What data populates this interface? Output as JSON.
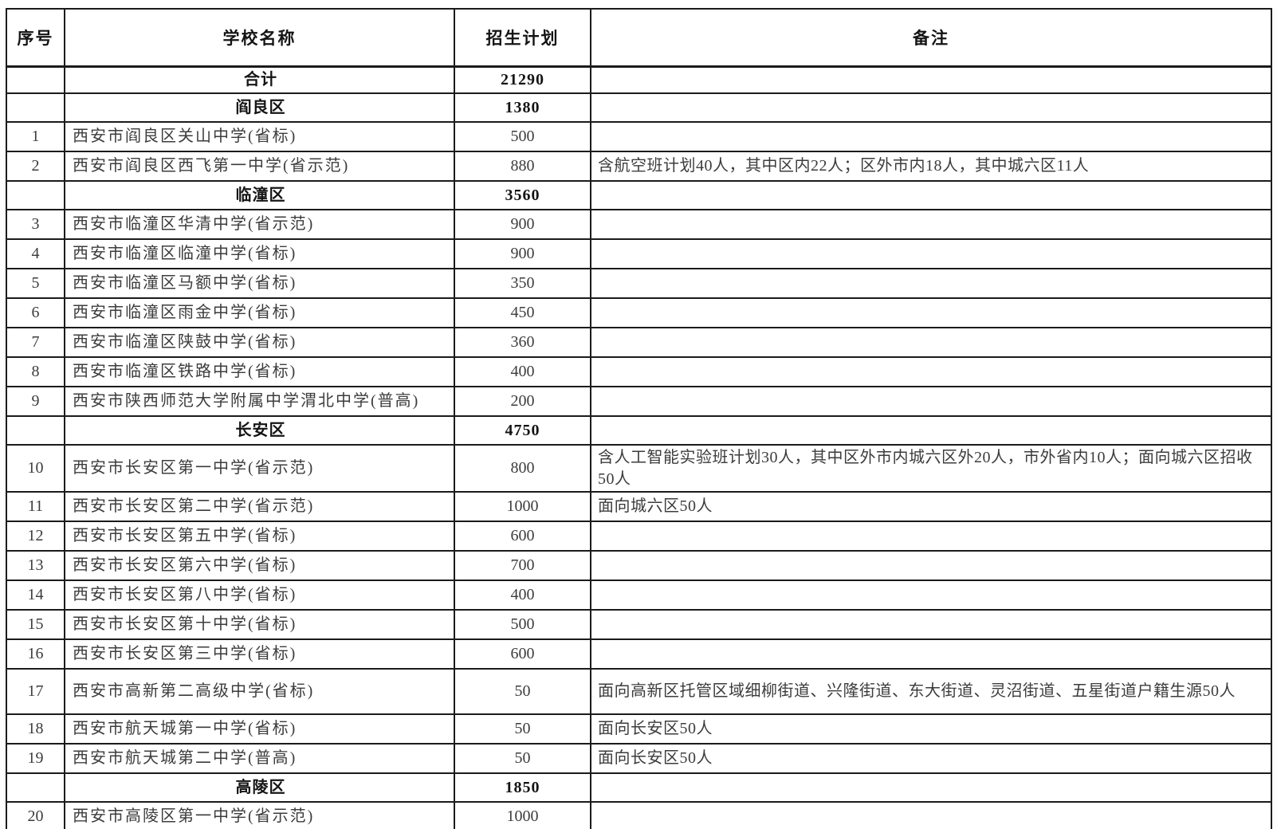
{
  "table": {
    "header": {
      "no": "序号",
      "name": "学校名称",
      "plan": "招生计划",
      "remark": "备注"
    },
    "rows": [
      {
        "kind": "summary",
        "no": "",
        "name": "合计",
        "plan": "21290",
        "remark": ""
      },
      {
        "kind": "district",
        "no": "",
        "name": "阎良区",
        "plan": "1380",
        "remark": ""
      },
      {
        "kind": "school",
        "no": "1",
        "name": "西安市阎良区关山中学(省标)",
        "plan": "500",
        "remark": ""
      },
      {
        "kind": "school",
        "no": "2",
        "name": "西安市阎良区西飞第一中学(省示范)",
        "plan": "880",
        "remark": "含航空班计划40人，其中区内22人；区外市内18人，其中城六区11人"
      },
      {
        "kind": "district",
        "no": "",
        "name": "临潼区",
        "plan": "3560",
        "remark": ""
      },
      {
        "kind": "school",
        "no": "3",
        "name": "西安市临潼区华清中学(省示范)",
        "plan": "900",
        "remark": ""
      },
      {
        "kind": "school",
        "no": "4",
        "name": "西安市临潼区临潼中学(省标)",
        "plan": "900",
        "remark": ""
      },
      {
        "kind": "school",
        "no": "5",
        "name": "西安市临潼区马额中学(省标)",
        "plan": "350",
        "remark": ""
      },
      {
        "kind": "school",
        "no": "6",
        "name": "西安市临潼区雨金中学(省标)",
        "plan": "450",
        "remark": ""
      },
      {
        "kind": "school",
        "no": "7",
        "name": "西安市临潼区陕鼓中学(省标)",
        "plan": "360",
        "remark": ""
      },
      {
        "kind": "school",
        "no": "8",
        "name": "西安市临潼区铁路中学(省标)",
        "plan": "400",
        "remark": ""
      },
      {
        "kind": "school",
        "no": "9",
        "name": "西安市陕西师范大学附属中学渭北中学(普高)",
        "plan": "200",
        "remark": ""
      },
      {
        "kind": "district",
        "no": "",
        "name": "长安区",
        "plan": "4750",
        "remark": ""
      },
      {
        "kind": "school",
        "no": "10",
        "name": "西安市长安区第一中学(省示范)",
        "plan": "800",
        "remark": "含人工智能实验班计划30人，其中区外市内城六区外20人，市外省内10人；面向城六区招收50人"
      },
      {
        "kind": "school",
        "no": "11",
        "name": "西安市长安区第二中学(省示范)",
        "plan": "1000",
        "remark": "面向城六区50人"
      },
      {
        "kind": "school",
        "no": "12",
        "name": "西安市长安区第五中学(省标)",
        "plan": "600",
        "remark": ""
      },
      {
        "kind": "school",
        "no": "13",
        "name": "西安市长安区第六中学(省标)",
        "plan": "700",
        "remark": ""
      },
      {
        "kind": "school",
        "no": "14",
        "name": "西安市长安区第八中学(省标)",
        "plan": "400",
        "remark": ""
      },
      {
        "kind": "school",
        "no": "15",
        "name": "西安市长安区第十中学(省标)",
        "plan": "500",
        "remark": ""
      },
      {
        "kind": "school",
        "no": "16",
        "name": "西安市长安区第三中学(省标)",
        "plan": "600",
        "remark": ""
      },
      {
        "kind": "school",
        "no": "17",
        "name": "西安市高新第二高级中学(省标)",
        "plan": "50",
        "remark": "面向高新区托管区域细柳街道、兴隆街道、东大街道、灵沼街道、五星街道户籍生源50人"
      },
      {
        "kind": "school",
        "no": "18",
        "name": "西安市航天城第一中学(省标)",
        "plan": "50",
        "remark": "面向长安区50人"
      },
      {
        "kind": "school",
        "no": "19",
        "name": "西安市航天城第二中学(普高)",
        "plan": "50",
        "remark": "面向长安区50人"
      },
      {
        "kind": "district",
        "no": "",
        "name": "高陵区",
        "plan": "1850",
        "remark": ""
      },
      {
        "kind": "school",
        "no": "20",
        "name": "西安市高陵区第一中学(省示范)",
        "plan": "1000",
        "remark": ""
      },
      {
        "kind": "partial",
        "no": "",
        "name": "",
        "plan": "",
        "remark": ""
      }
    ]
  }
}
